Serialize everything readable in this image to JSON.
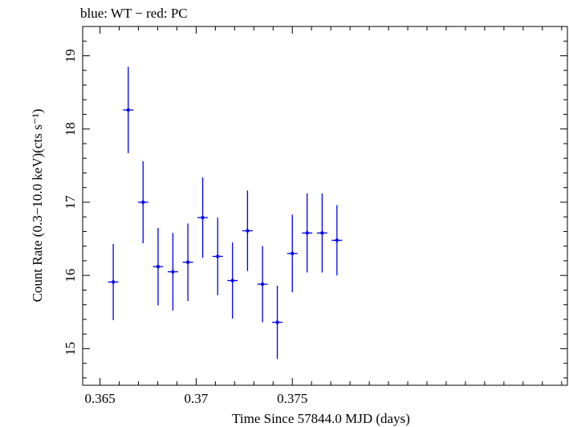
{
  "chart_data": {
    "type": "scatter",
    "title": "blue: WT − red: PC",
    "xlabel": "Time Since 57844.0 MJD (days)",
    "ylabel": "Count Rate (0.3−10.0 keV)(cts s⁻¹)",
    "xlim": [
      0.3641,
      0.3893
    ],
    "ylim": [
      14.5,
      19.4
    ],
    "x_ticks": [
      {
        "value": 0.365,
        "label": "0.365"
      },
      {
        "value": 0.37,
        "label": "0.37"
      },
      {
        "value": 0.375,
        "label": "0.375"
      }
    ],
    "y_ticks": [
      {
        "value": 15,
        "label": "15"
      },
      {
        "value": 16,
        "label": "16"
      },
      {
        "value": 17,
        "label": "17"
      },
      {
        "value": 18,
        "label": "18"
      },
      {
        "value": 19,
        "label": "19"
      }
    ],
    "grid": false,
    "series": [
      {
        "color": "#0000ee",
        "points": [
          {
            "x": 0.36569,
            "y": 15.91,
            "xerr": 0.00027,
            "yerr": 0.52
          },
          {
            "x": 0.36647,
            "y": 18.26,
            "xerr": 0.00027,
            "yerr": 0.59
          },
          {
            "x": 0.36724,
            "y": 17.0,
            "xerr": 0.00027,
            "yerr": 0.56
          },
          {
            "x": 0.36802,
            "y": 16.12,
            "xerr": 0.00027,
            "yerr": 0.53
          },
          {
            "x": 0.36879,
            "y": 16.05,
            "xerr": 0.00027,
            "yerr": 0.53
          },
          {
            "x": 0.36957,
            "y": 16.18,
            "xerr": 0.00027,
            "yerr": 0.53
          },
          {
            "x": 0.37034,
            "y": 16.79,
            "xerr": 0.00027,
            "yerr": 0.55
          },
          {
            "x": 0.37112,
            "y": 16.26,
            "xerr": 0.00027,
            "yerr": 0.53
          },
          {
            "x": 0.37189,
            "y": 15.93,
            "xerr": 0.00027,
            "yerr": 0.52
          },
          {
            "x": 0.37267,
            "y": 16.61,
            "xerr": 0.00027,
            "yerr": 0.55
          },
          {
            "x": 0.37345,
            "y": 15.88,
            "xerr": 0.00027,
            "yerr": 0.52
          },
          {
            "x": 0.37422,
            "y": 15.36,
            "xerr": 0.00027,
            "yerr": 0.5
          },
          {
            "x": 0.375,
            "y": 16.3,
            "xerr": 0.00027,
            "yerr": 0.53
          },
          {
            "x": 0.37577,
            "y": 16.58,
            "xerr": 0.00027,
            "yerr": 0.54
          },
          {
            "x": 0.37655,
            "y": 16.58,
            "xerr": 0.00027,
            "yerr": 0.54
          },
          {
            "x": 0.37732,
            "y": 16.48,
            "xerr": 0.00027,
            "yerr": 0.48
          }
        ]
      }
    ]
  }
}
